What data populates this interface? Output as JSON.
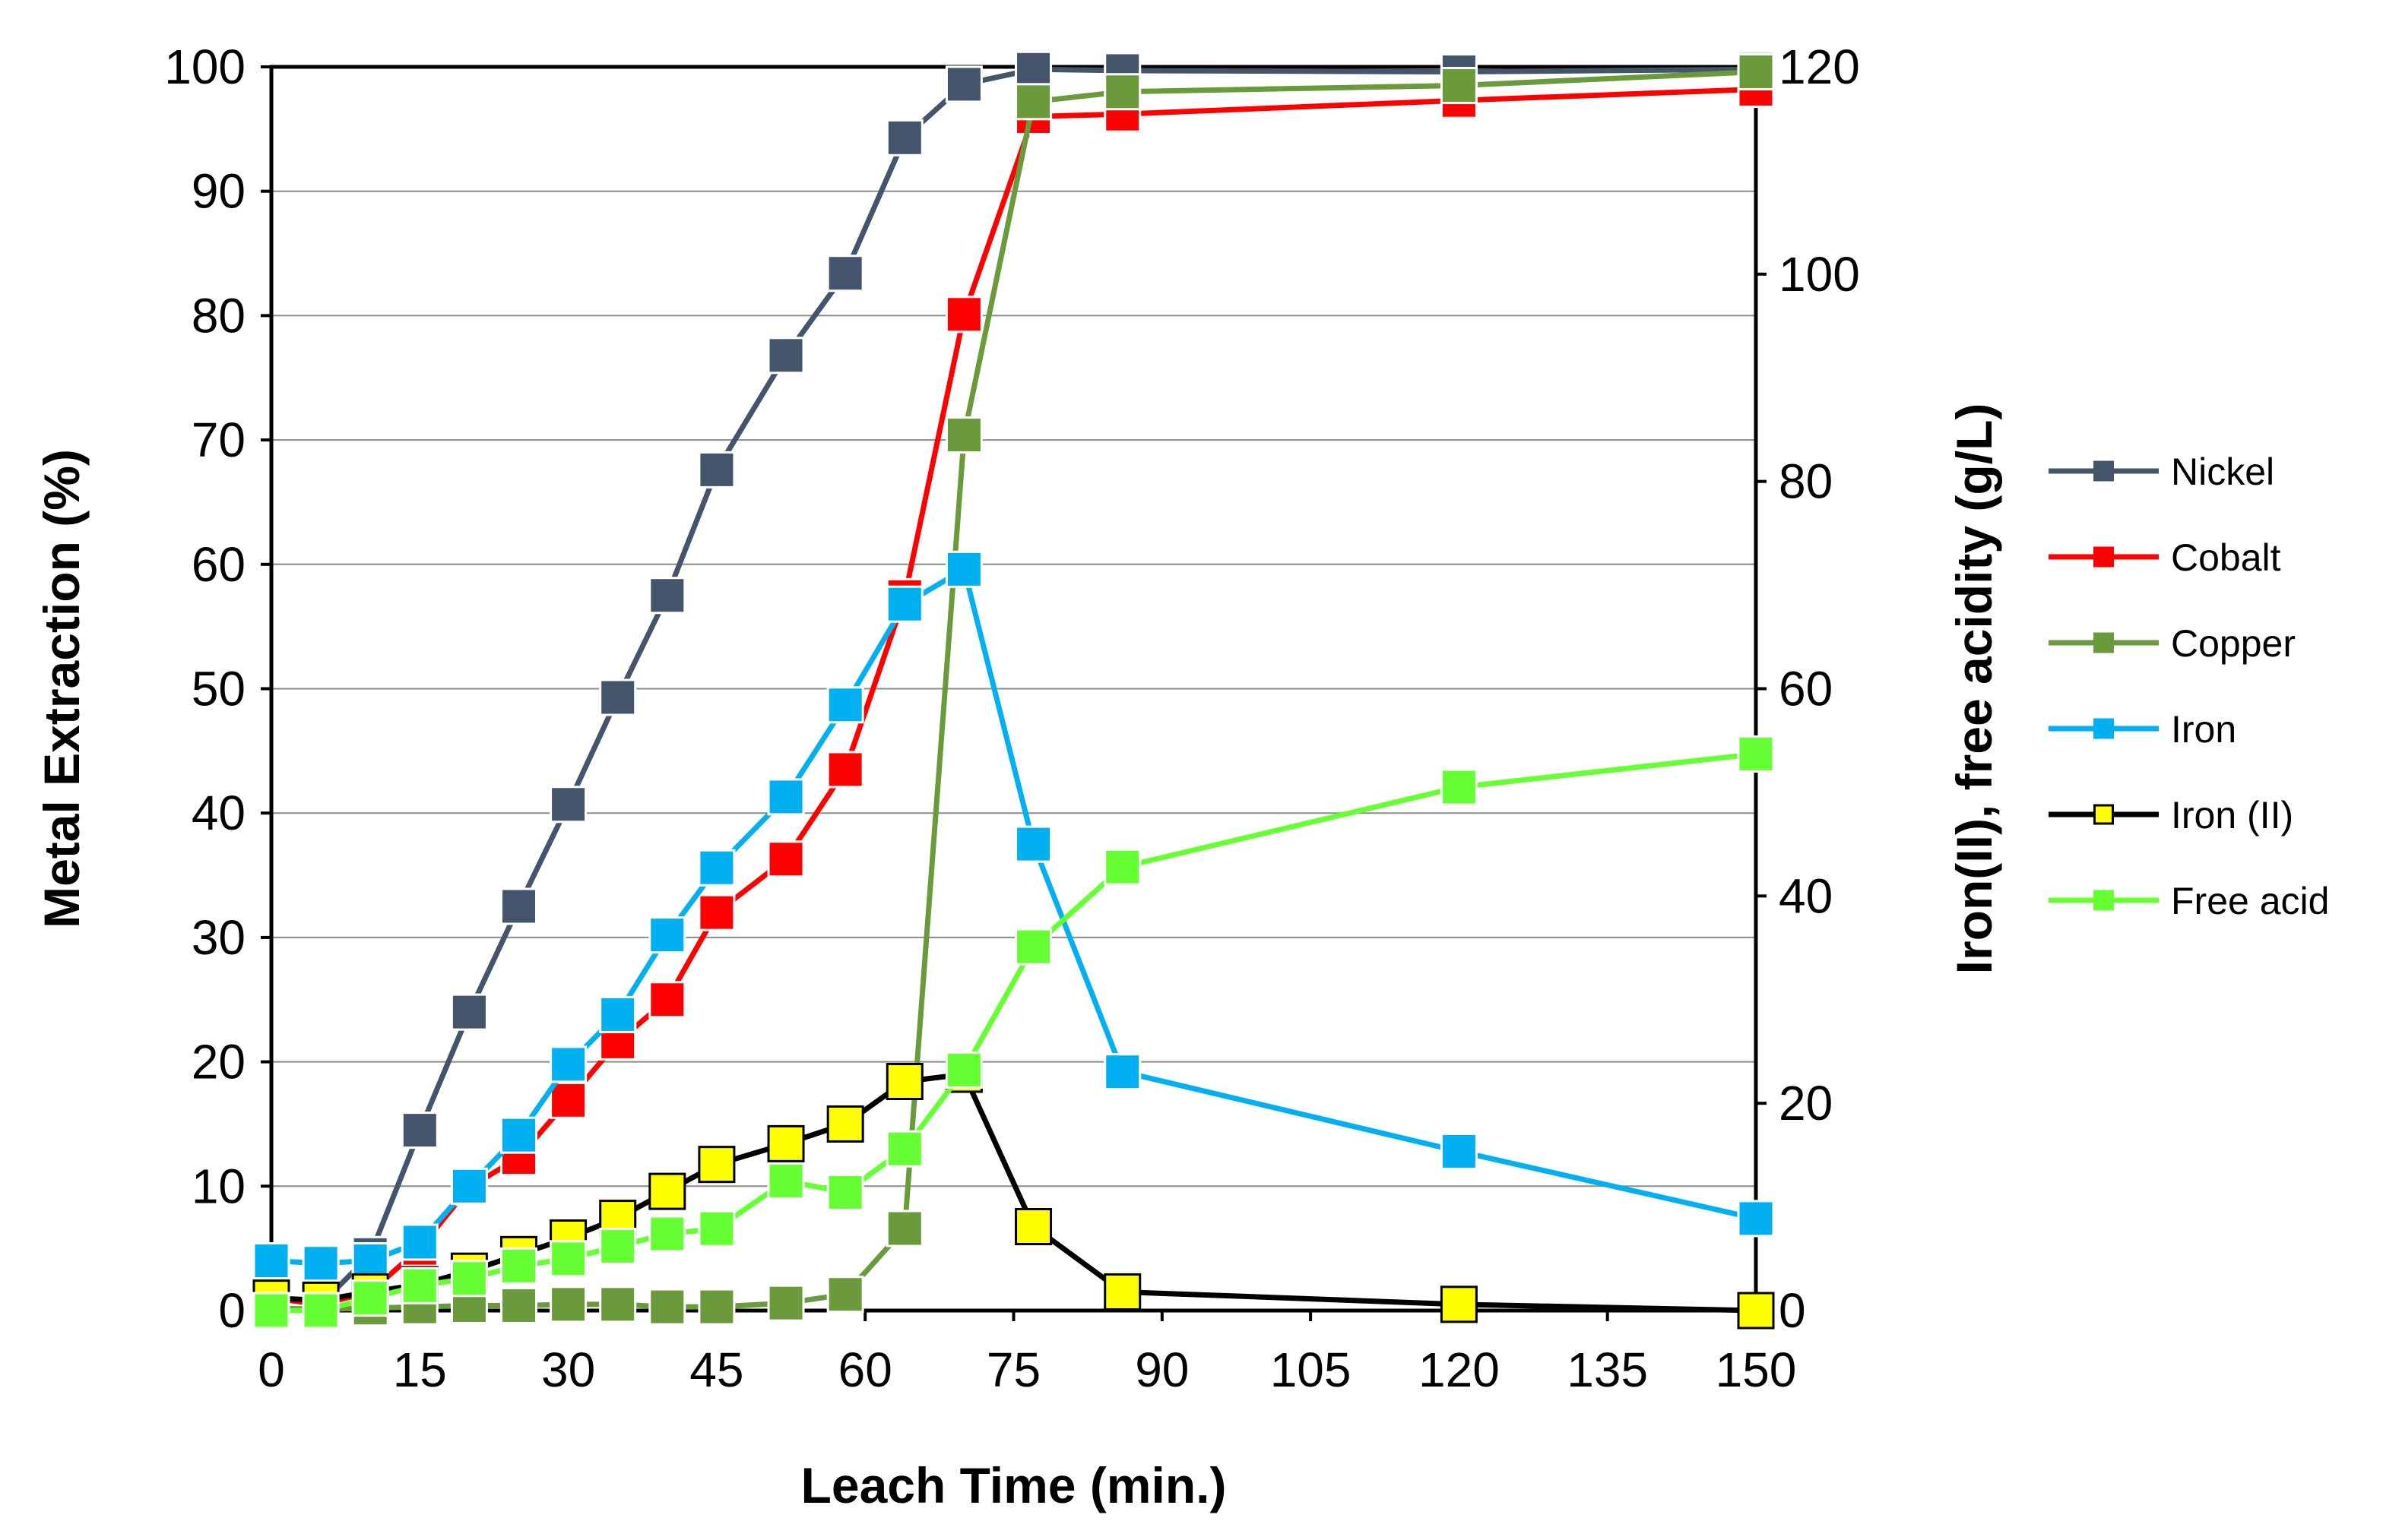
{
  "chart_data": {
    "type": "line",
    "title": "",
    "xlabel": "Leach Time (min.)",
    "ylabel": "Metal Extraction (%)",
    "y2label": "Iron(II), free acidity (g/L)",
    "xlim": [
      0,
      150
    ],
    "ylim": [
      0,
      100
    ],
    "y2lim": [
      0,
      120
    ],
    "xticks": [
      0,
      15,
      30,
      45,
      60,
      75,
      90,
      105,
      120,
      135,
      150
    ],
    "yticks": [
      0,
      10,
      20,
      30,
      40,
      50,
      60,
      70,
      80,
      90,
      100
    ],
    "y2ticks": [
      0,
      20,
      40,
      60,
      80,
      100,
      120
    ],
    "grid": true,
    "legend_position": "right",
    "series": [
      {
        "name": "Nickel",
        "axis": "left",
        "color": "#44546a",
        "marker_fill": "#44546a",
        "x": [
          0,
          5,
          10,
          15,
          20,
          25,
          30,
          35,
          40,
          45,
          52,
          58,
          64,
          70,
          77,
          86,
          120,
          150
        ],
        "values": [
          1.0,
          0.5,
          4.5,
          14.5,
          24.0,
          32.5,
          40.7,
          49.3,
          57.5,
          67.6,
          76.8,
          83.4,
          94.3,
          98.6,
          99.8,
          99.7,
          99.6,
          99.8
        ]
      },
      {
        "name": "Cobalt",
        "axis": "left",
        "color": "#ff0000",
        "marker_fill": "#ff0000",
        "x": [
          0,
          5,
          10,
          15,
          20,
          25,
          30,
          35,
          40,
          45,
          52,
          58,
          64,
          70,
          77,
          86,
          120,
          150
        ],
        "values": [
          1.0,
          0.5,
          1.5,
          5.0,
          9.9,
          12.3,
          16.9,
          21.6,
          25.0,
          32.0,
          36.3,
          43.5,
          57.4,
          80.1,
          96.0,
          96.2,
          97.3,
          98.2
        ]
      },
      {
        "name": "Copper",
        "axis": "left",
        "color": "#6a9a3c",
        "marker_fill": "#6a9a3c",
        "x": [
          0,
          5,
          10,
          15,
          20,
          25,
          30,
          35,
          40,
          45,
          52,
          58,
          64,
          70,
          77,
          86,
          120,
          150
        ],
        "values": [
          0.2,
          0.1,
          0.2,
          0.3,
          0.4,
          0.4,
          0.5,
          0.5,
          0.3,
          0.3,
          0.6,
          1.3,
          6.6,
          70.4,
          97.2,
          98.0,
          98.5,
          99.6
        ]
      },
      {
        "name": "Iron",
        "axis": "left",
        "color": "#00b0f0",
        "marker_fill": "#00b0f0",
        "x": [
          0,
          5,
          10,
          15,
          20,
          25,
          30,
          35,
          40,
          45,
          52,
          58,
          64,
          70,
          77,
          86,
          120,
          150
        ],
        "values": [
          4.0,
          3.8,
          4.0,
          5.5,
          10.0,
          14.1,
          19.8,
          23.8,
          30.2,
          35.6,
          41.3,
          48.7,
          56.8,
          59.6,
          37.5,
          19.2,
          12.8,
          7.4
        ]
      },
      {
        "name": "Iron (II)",
        "axis": "right",
        "color": "#000000",
        "marker_fill": "#ffff00",
        "x": [
          0,
          5,
          10,
          15,
          20,
          25,
          30,
          35,
          40,
          45,
          52,
          58,
          64,
          70,
          77,
          86,
          120,
          150
        ],
        "values": [
          1.2,
          1.0,
          1.8,
          2.5,
          3.8,
          5.4,
          7.0,
          8.9,
          11.5,
          14.1,
          16.1,
          18.0,
          22.1,
          22.8,
          8.1,
          1.8,
          0.6,
          0.0
        ]
      },
      {
        "name": "Free acid",
        "axis": "right",
        "color": "#66ff33",
        "marker_fill": "#66ff33",
        "x": [
          0,
          5,
          10,
          15,
          20,
          25,
          30,
          35,
          40,
          45,
          52,
          58,
          64,
          70,
          77,
          86,
          120,
          150
        ],
        "values": [
          0.0,
          0.0,
          1.2,
          2.4,
          3.1,
          4.3,
          5.0,
          6.2,
          7.4,
          7.9,
          12.5,
          11.4,
          15.6,
          23.2,
          35.1,
          42.8,
          50.5,
          53.7
        ]
      }
    ]
  }
}
